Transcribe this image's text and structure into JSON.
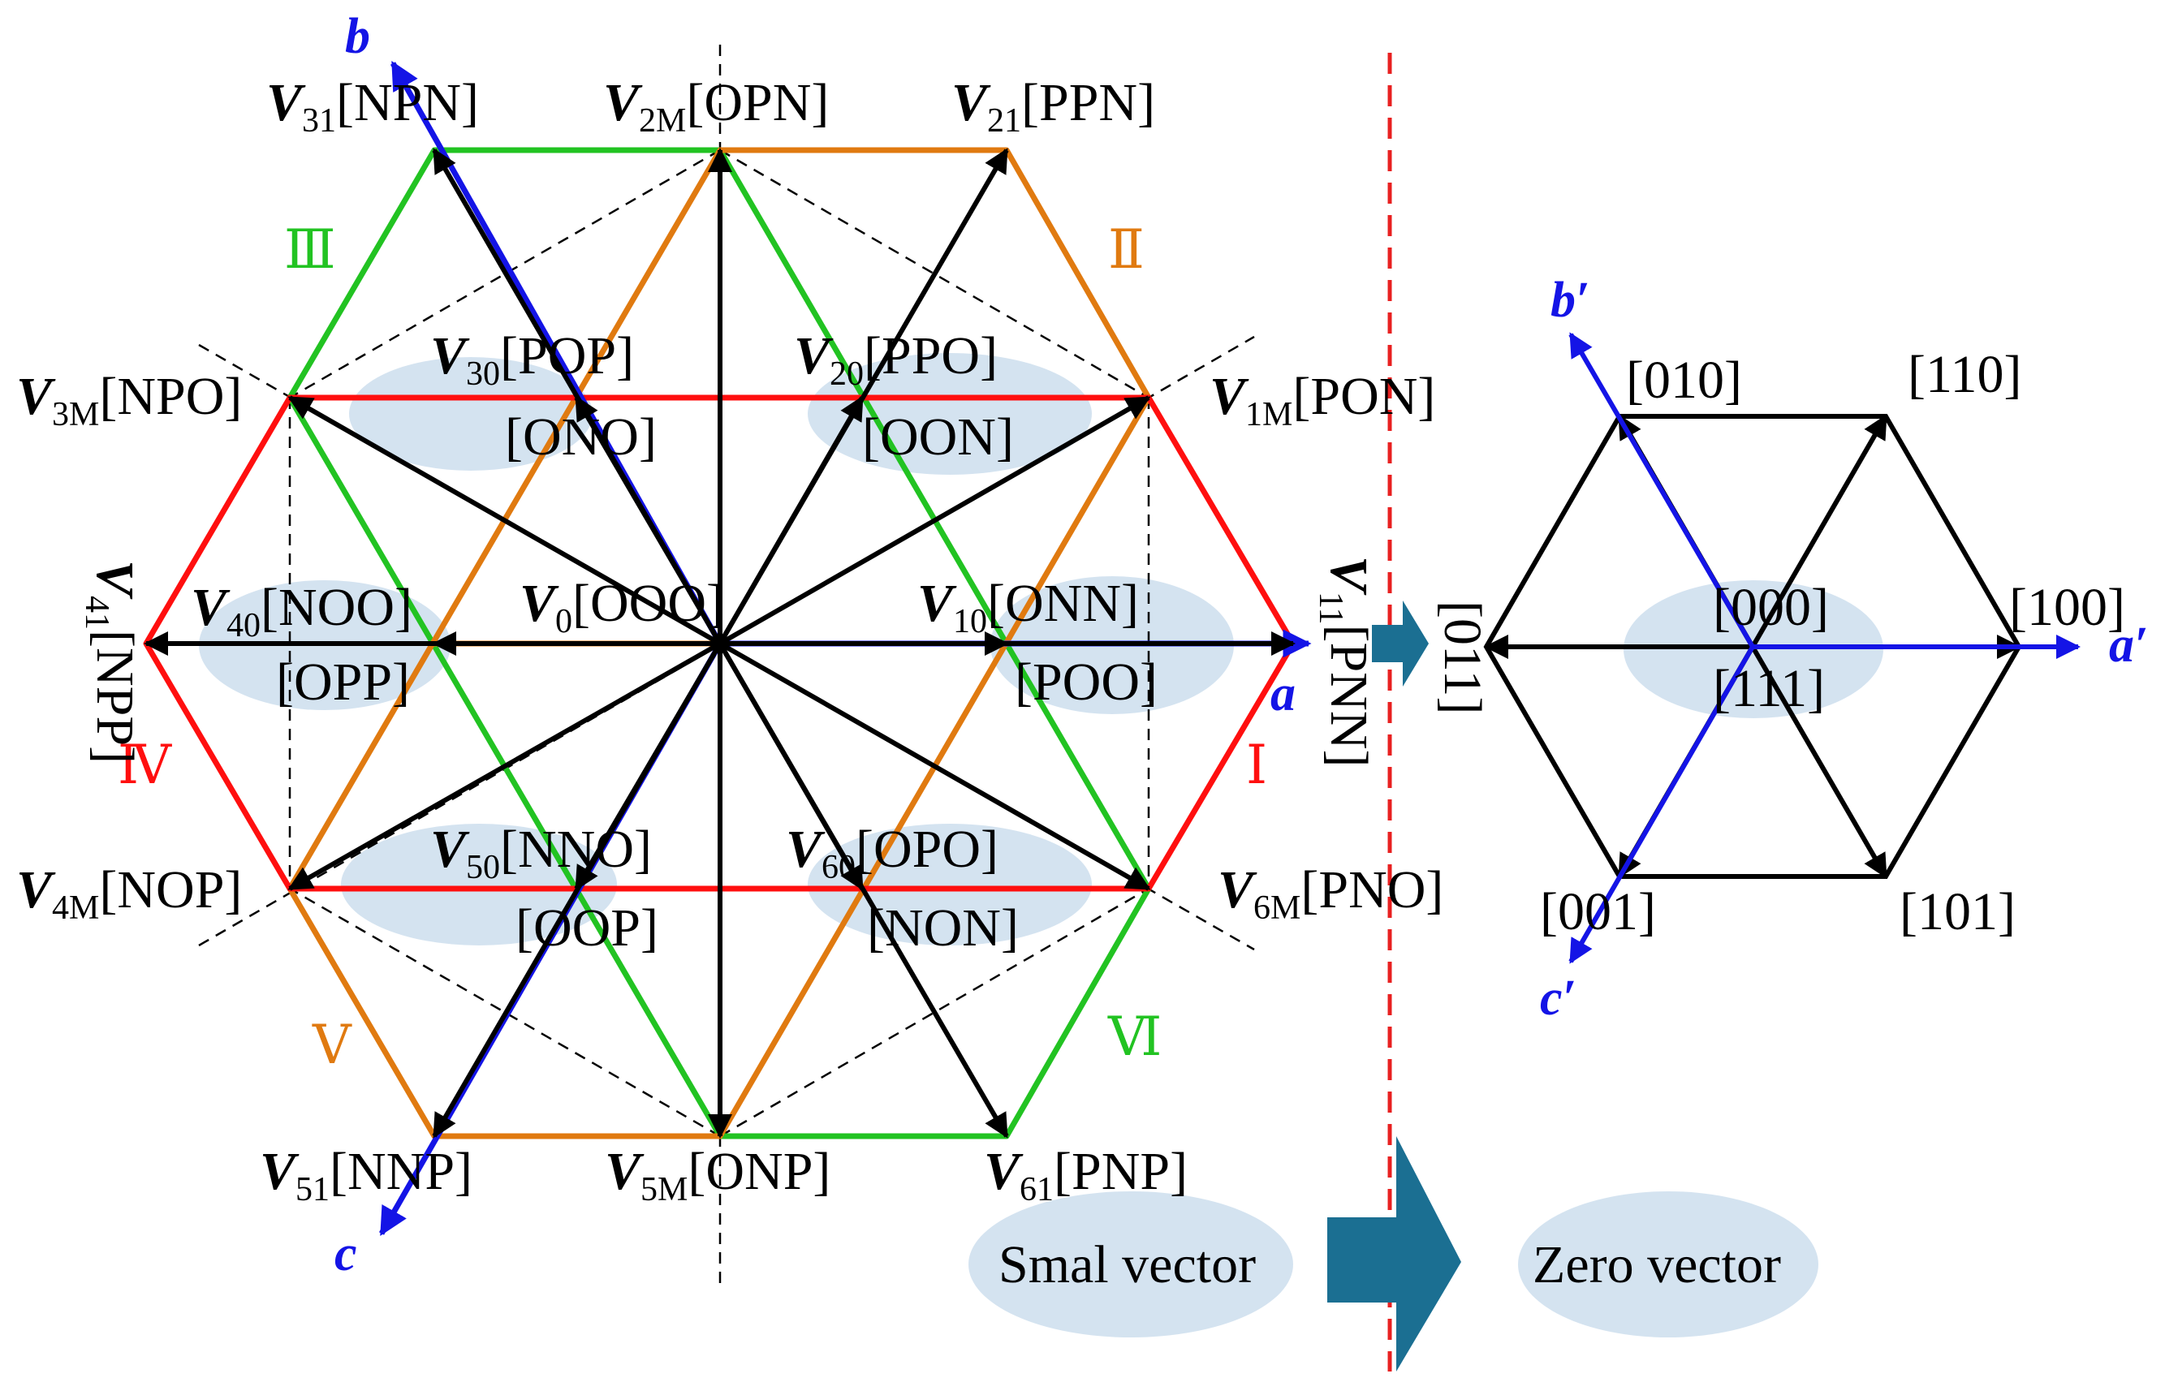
{
  "colors": {
    "orange": "#e07a10",
    "green": "#22c322",
    "red": "#ff0f0f",
    "black": "#000000",
    "axis_blue": "#1414e6",
    "bubble": "#cfe0ee",
    "dash_red": "#e82020",
    "arrow_blue": "#1b6f92"
  },
  "axes": {
    "a": "a",
    "b": "b",
    "c": "c",
    "a_prime": "a′",
    "b_prime": "b′",
    "c_prime": "c′"
  },
  "sectors": {
    "I": "Ⅰ",
    "II": "Ⅱ",
    "III": "Ⅲ",
    "IV": "Ⅳ",
    "V": "Ⅴ",
    "VI": "Ⅵ"
  },
  "vectors": {
    "V31": {
      "sym": "V",
      "sub": "31",
      "state": "[NPN]"
    },
    "V2M": {
      "sym": "V",
      "sub": "2M",
      "state": "[OPN]"
    },
    "V21": {
      "sym": "V",
      "sub": "21",
      "state": "[PPN]"
    },
    "V3M": {
      "sym": "V",
      "sub": "3M",
      "state": "[NPO]"
    },
    "V1M": {
      "sym": "V",
      "sub": "1M",
      "state": "[PON]"
    },
    "V30": {
      "sym": "V",
      "sub": "30",
      "state": "[POP]",
      "state2": "[ONO]"
    },
    "V20": {
      "sym": "V",
      "sub": "20",
      "state": "[PPO]",
      "state2": "[OON]"
    },
    "V40": {
      "sym": "V",
      "sub": "40",
      "state": "[NOO]",
      "state2": "[OPP]"
    },
    "V0": {
      "sym": "V",
      "sub": "0",
      "state": "[OOO]"
    },
    "V10": {
      "sym": "V",
      "sub": "10",
      "state": "[ONN]",
      "state2": "[POO]"
    },
    "V41": {
      "sym": "V",
      "sub": "41",
      "state": "[NPP]"
    },
    "V11": {
      "sym": "V",
      "sub": "11",
      "state": "[PNN]"
    },
    "V50": {
      "sym": "V",
      "sub": "50",
      "state": "[NNO]",
      "state2": "[OOP]"
    },
    "V60": {
      "sym": "V",
      "sub": "60",
      "state": "[OPO]",
      "state2": "[NON]"
    },
    "V4M": {
      "sym": "V",
      "sub": "4M",
      "state": "[NOP]"
    },
    "V6M": {
      "sym": "V",
      "sub": "6M",
      "state": "[PNO]"
    },
    "V51": {
      "sym": "V",
      "sub": "51",
      "state": "[NNP]"
    },
    "V5M": {
      "sym": "V",
      "sub": "5M",
      "state": "[ONP]"
    },
    "V61": {
      "sym": "V",
      "sub": "61",
      "state": "[PNP]"
    }
  },
  "two_level": {
    "s010": "[010]",
    "s110": "[110]",
    "s011": "[011]",
    "s100": "[100]",
    "s000": "[000]",
    "s111": "[111]",
    "s001": "[001]",
    "s101": "[101]"
  },
  "legend": {
    "small": "Smal vector",
    "zero": "Zero vector"
  }
}
